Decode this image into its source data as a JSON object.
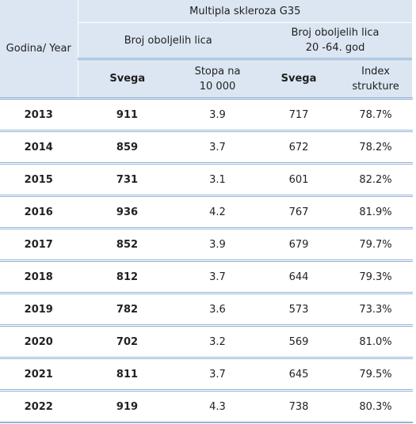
{
  "header": {
    "year_label": "Godina/ Year",
    "group_title": "Multipla skleroza G35",
    "col_group_1": "Broj oboljelih lica",
    "col_group_2_line1": "Broj oboljelih lica",
    "col_group_2_line2": "20 -64. god",
    "sub_total_1": "Svega",
    "sub_rate_line1": "Stopa na",
    "sub_rate_line2": "10 000",
    "sub_total_2": "Svega",
    "sub_index_line1": "Index",
    "sub_index_line2": "strukture"
  },
  "rows": [
    {
      "year": "2013",
      "total": "911",
      "rate": "3.9",
      "total_20_64": "717",
      "index": "78.7%"
    },
    {
      "year": "2014",
      "total": "859",
      "rate": "3.7",
      "total_20_64": "672",
      "index": "78.2%"
    },
    {
      "year": "2015",
      "total": "731",
      "rate": "3.1",
      "total_20_64": "601",
      "index": "82.2%"
    },
    {
      "year": "2016",
      "total": "936",
      "rate": "4.2",
      "total_20_64": "767",
      "index": "81.9%"
    },
    {
      "year": "2017",
      "total": "852",
      "rate": "3.9",
      "total_20_64": "679",
      "index": "79.7%"
    },
    {
      "year": "2018",
      "total": "812",
      "rate": "3.7",
      "total_20_64": "644",
      "index": "79.3%"
    },
    {
      "year": "2019",
      "total": "782",
      "rate": "3.6",
      "total_20_64": "573",
      "index": "73.3%"
    },
    {
      "year": "2020",
      "total": "702",
      "rate": "3.2",
      "total_20_64": "569",
      "index": "81.0%"
    },
    {
      "year": "2021",
      "total": "811",
      "rate": "3.7",
      "total_20_64": "645",
      "index": "79.5%"
    },
    {
      "year": "2022",
      "total": "919",
      "rate": "4.3",
      "total_20_64": "738",
      "index": "80.3%"
    }
  ]
}
